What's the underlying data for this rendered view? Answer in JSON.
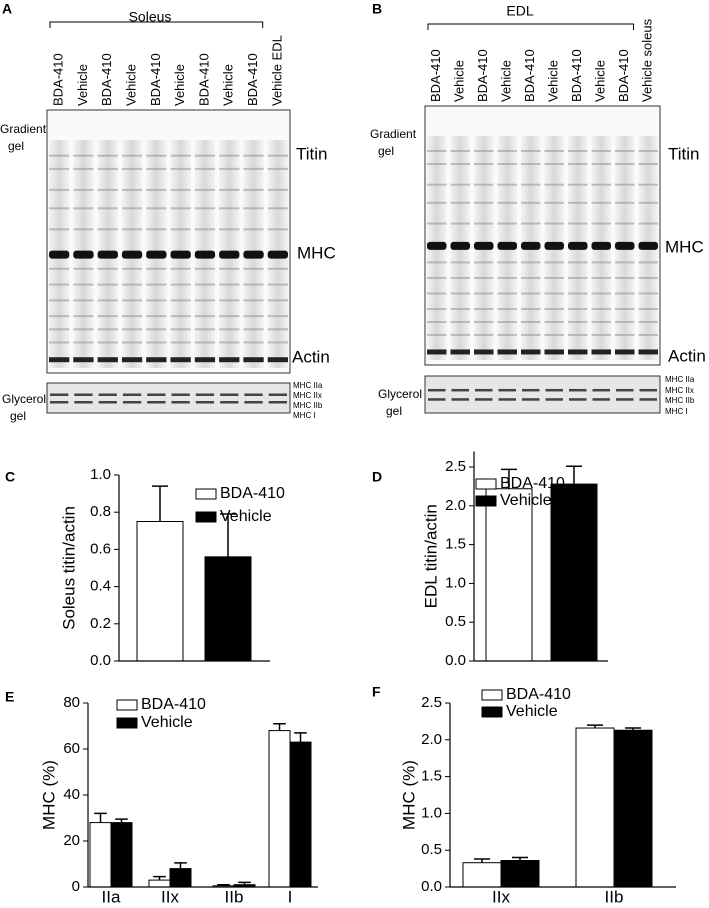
{
  "panels": [
    {
      "letter": "A",
      "header": "Soleus",
      "lanes": [
        "BDA-410",
        "Vehicle",
        "BDA-410",
        "Vehicle",
        "BDA-410",
        "Vehicle",
        "BDA-410",
        "Vehicle",
        "BDA-410",
        "Vehicle EDL"
      ],
      "gradient_label": [
        "Gradient",
        "gel"
      ],
      "bands": [
        "Titin",
        "MHC",
        "Actin"
      ],
      "glycerol_label": [
        "Glycerol",
        "gel"
      ],
      "isoforms": [
        "MHC IIa",
        "MHC IIx",
        "MHC IIb",
        "MHC I"
      ]
    },
    {
      "letter": "B",
      "header": "EDL",
      "lanes": [
        "BDA-410",
        "Vehicle",
        "BDA-410",
        "Vehicle",
        "BDA-410",
        "Vehicle",
        "BDA-410",
        "Vehicle",
        "BDA-410",
        "Vehicle soleus"
      ],
      "gradient_label": [
        "Gradient",
        "gel"
      ],
      "bands": [
        "Titin",
        "MHC",
        "Actin"
      ],
      "glycerol_label": [
        "Glycerol",
        "gel"
      ],
      "isoforms": [
        "MHC IIa",
        "MHC IIx",
        "MHC IIb",
        "MHC I"
      ]
    }
  ],
  "chart_data": [
    {
      "type": "bar",
      "panel": "C",
      "y_label": "Soleus titin/actin",
      "categories": [
        null
      ],
      "series": [
        {
          "name": "BDA-410",
          "color": "#ffffff",
          "values": [
            0.75
          ],
          "errors": [
            0.19
          ]
        },
        {
          "name": "Vehicle",
          "color": "#000000",
          "values": [
            0.56
          ],
          "errors": [
            0.23
          ]
        }
      ],
      "ylim": [
        0,
        1.0
      ],
      "yticks": [
        {
          "value": 0,
          "label": "0.0"
        },
        0.2,
        0.4,
        0.6,
        0.8,
        {
          "value": 1,
          "label": "1.0"
        }
      ]
    },
    {
      "type": "bar",
      "panel": "D",
      "y_label": "EDL  titin/actin",
      "categories": [
        null
      ],
      "series": [
        {
          "name": "BDA-410",
          "color": "#ffffff",
          "values": [
            2.22
          ],
          "errors": [
            0.25
          ]
        },
        {
          "name": "Vehicle",
          "color": "#000000",
          "values": [
            2.28
          ],
          "errors": [
            0.23
          ]
        }
      ],
      "ylim": [
        0,
        2.7
      ],
      "yticks": [
        {
          "value": 0,
          "label": "0.0"
        },
        0.5,
        {
          "value": 1,
          "label": "1.0"
        },
        1.5,
        {
          "value": 2,
          "label": "2.0"
        },
        2.5
      ]
    },
    {
      "type": "bar",
      "panel": "E",
      "y_label": "MHC (%)",
      "categories": [
        "IIa",
        "IIx",
        "IIb",
        "I"
      ],
      "series": [
        {
          "name": "BDA-410",
          "color": "#ffffff",
          "values": [
            28,
            3,
            0.5,
            68
          ],
          "errors": [
            4,
            1.5,
            0.5,
            3
          ]
        },
        {
          "name": "Vehicle",
          "color": "#000000",
          "values": [
            28,
            8,
            1,
            63
          ],
          "errors": [
            1.5,
            2.5,
            1,
            4
          ]
        }
      ],
      "ylim": [
        0,
        80
      ],
      "yticks": [
        0,
        20,
        40,
        60,
        80
      ]
    },
    {
      "type": "bar",
      "panel": "F",
      "y_label": "MHC (%)",
      "categories": [
        "IIx",
        "IIb"
      ],
      "series": [
        {
          "name": "BDA-410",
          "color": "#ffffff",
          "values": [
            0.33,
            2.16
          ],
          "errors": [
            0.05,
            0.04
          ]
        },
        {
          "name": "Vehicle",
          "color": "#000000",
          "values": [
            0.36,
            2.13
          ],
          "errors": [
            0.04,
            0.03
          ]
        }
      ],
      "ylim": [
        0,
        2.5
      ],
      "yticks": [
        {
          "value": 0,
          "label": "0.0"
        },
        0.5,
        {
          "value": 1,
          "label": "1.0"
        },
        1.5,
        {
          "value": 2,
          "label": "2.0"
        },
        2.5
      ]
    }
  ]
}
